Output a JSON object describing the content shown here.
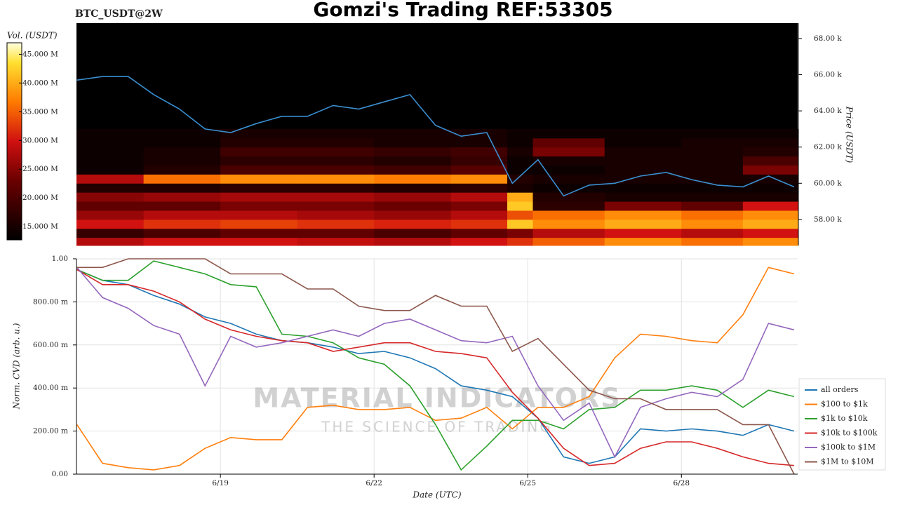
{
  "chart_data": [
    {
      "type": "heatmap",
      "title": "Gomzi's Trading REF:53305",
      "subtitle": "BTC_USDT@2W",
      "zlabel": "Vol. (USDT)",
      "ylabel": "Price (USDT)",
      "xlim": [
        16.19,
        30.27
      ],
      "ylim": [
        56560,
        68850
      ],
      "yticks": [
        {
          "value": 58000,
          "label": "58.00 k"
        },
        {
          "value": 60000,
          "label": "60.00 k"
        },
        {
          "value": 62000,
          "label": "62.00 k"
        },
        {
          "value": 64000,
          "label": "64.00 k"
        },
        {
          "value": 66000,
          "label": "66.00 k"
        },
        {
          "value": 68000,
          "label": "68.00 k"
        }
      ],
      "zlim": [
        12.7,
        47
      ],
      "zticks": [
        {
          "value": 15,
          "label": "15.000 M"
        },
        {
          "value": 20,
          "label": "20.000 M"
        },
        {
          "value": 25,
          "label": "25.000 M"
        },
        {
          "value": 30,
          "label": "30.000 M"
        },
        {
          "value": 35,
          "label": "35.000 M"
        },
        {
          "value": 40,
          "label": "40.000 M"
        },
        {
          "value": 45,
          "label": "45.000 M"
        }
      ],
      "x_bins": [
        16.19,
        17.5,
        19,
        20.5,
        22,
        23.5,
        24.6,
        25.1,
        26.5,
        28,
        29.2,
        30.27
      ],
      "y_bins": [
        56500,
        57000,
        57500,
        58000,
        58500,
        59000,
        59500,
        60000,
        60500,
        61000,
        61500,
        62000,
        62500,
        63000
      ],
      "z": [
        [
          28,
          30,
          30,
          29,
          28,
          30,
          32,
          35,
          38,
          36,
          38
        ],
        [
          18,
          20,
          22,
          22,
          20,
          22,
          24,
          28,
          30,
          28,
          30
        ],
        [
          30,
          32,
          33,
          32,
          31,
          32,
          42,
          38,
          40,
          38,
          40
        ],
        [
          26,
          28,
          28,
          27,
          26,
          28,
          34,
          36,
          38,
          36,
          38
        ],
        [
          22,
          22,
          24,
          24,
          23,
          24,
          42,
          17,
          24,
          22,
          30
        ],
        [
          25,
          26,
          27,
          27,
          26,
          28,
          40,
          16,
          15,
          15,
          15
        ],
        [
          16,
          16,
          17,
          17,
          16,
          17,
          15,
          14,
          14,
          14,
          14
        ],
        [
          28,
          36,
          38,
          38,
          37,
          38,
          16,
          15,
          15,
          15,
          15
        ],
        [
          14,
          16,
          20,
          20,
          19,
          21,
          14,
          14,
          15,
          15,
          24
        ],
        [
          14,
          15,
          17,
          17,
          16,
          18,
          14,
          15,
          15,
          15,
          20
        ],
        [
          14,
          15,
          19,
          19,
          18,
          19,
          15,
          24,
          15,
          15,
          16
        ],
        [
          14,
          14,
          16,
          16,
          15,
          15,
          14,
          22,
          14,
          15,
          15
        ],
        [
          14,
          14,
          15,
          15,
          15,
          15,
          14,
          14,
          14,
          14,
          14
        ]
      ],
      "x": [
        16.2,
        16.7,
        17.2,
        17.7,
        18.2,
        18.7,
        19.2,
        19.7,
        20.2,
        20.7,
        21.2,
        21.7,
        22.2,
        22.7,
        23.2,
        23.7,
        24.2,
        24.7,
        25.2,
        25.7,
        26.2,
        26.7,
        27.2,
        27.7,
        28.2,
        28.7,
        29.2,
        29.7,
        30.2
      ],
      "line": {
        "color": "#3a8fd0",
        "values": [
          65700,
          65900,
          65900,
          64900,
          64100,
          63000,
          62800,
          63300,
          63700,
          63700,
          64300,
          64100,
          64500,
          64900,
          63200,
          62600,
          62800,
          60000,
          61300,
          59300,
          59900,
          60000,
          60400,
          60600,
          60200,
          59900,
          59800,
          60400,
          59800
        ]
      }
    },
    {
      "type": "line",
      "xlabel": "Date (UTC)",
      "ylabel": "Norm. CVD (arb. u.)",
      "grid": true,
      "legend": "right",
      "watermark": {
        "title": "MATERIAL INDICATORS",
        "subtitle": "THE SCIENCE OF TRADING"
      },
      "xlim": [
        16.19,
        30.27
      ],
      "ylim": [
        0,
        1
      ],
      "xticks": [
        {
          "value": 19,
          "label": "6/19"
        },
        {
          "value": 22,
          "label": "6/22"
        },
        {
          "value": 25,
          "label": "6/25"
        },
        {
          "value": 28,
          "label": "6/28"
        }
      ],
      "yticks": [
        {
          "value": 0,
          "label": "0.00"
        },
        {
          "value": 0.2,
          "label": "200.00 m"
        },
        {
          "value": 0.4,
          "label": "400.00 m"
        },
        {
          "value": 0.6,
          "label": "600.00 m"
        },
        {
          "value": 0.8,
          "label": "800.00 m"
        },
        {
          "value": 1,
          "label": "1.00"
        }
      ],
      "x": [
        16.2,
        16.7,
        17.2,
        17.7,
        18.2,
        18.7,
        19.2,
        19.7,
        20.2,
        20.7,
        21.2,
        21.7,
        22.2,
        22.7,
        23.2,
        23.7,
        24.2,
        24.7,
        25.2,
        25.7,
        26.2,
        26.7,
        27.2,
        27.7,
        28.2,
        28.7,
        29.2,
        29.7,
        30.2
      ],
      "series": [
        {
          "name": "all orders",
          "color": "#1f77b4",
          "values": [
            0.95,
            0.9,
            0.88,
            0.83,
            0.79,
            0.73,
            0.7,
            0.65,
            0.62,
            0.61,
            0.59,
            0.56,
            0.57,
            0.54,
            0.49,
            0.41,
            0.39,
            0.36,
            0.26,
            0.08,
            0.05,
            0.08,
            0.21,
            0.2,
            0.21,
            0.2,
            0.18,
            0.23,
            0.2
          ]
        },
        {
          "name": "$100 to $1k",
          "color": "#ff7f0e",
          "values": [
            0.23,
            0.05,
            0.03,
            0.02,
            0.04,
            0.12,
            0.17,
            0.16,
            0.16,
            0.31,
            0.32,
            0.3,
            0.3,
            0.31,
            0.25,
            0.26,
            0.31,
            0.21,
            0.31,
            0.31,
            0.36,
            0.54,
            0.65,
            0.64,
            0.62,
            0.61,
            0.74,
            0.96,
            0.93
          ]
        },
        {
          "name": "$1k to $10k",
          "color": "#2ca02c",
          "values": [
            0.95,
            0.9,
            0.9,
            0.99,
            0.96,
            0.93,
            0.88,
            0.87,
            0.65,
            0.64,
            0.61,
            0.54,
            0.51,
            0.41,
            0.23,
            0.02,
            0.13,
            0.25,
            0.25,
            0.21,
            0.3,
            0.31,
            0.39,
            0.39,
            0.41,
            0.39,
            0.31,
            0.39,
            0.36
          ]
        },
        {
          "name": "$10k to $100k",
          "color": "#d62728",
          "values": [
            0.95,
            0.88,
            0.88,
            0.85,
            0.8,
            0.72,
            0.67,
            0.64,
            0.62,
            0.61,
            0.57,
            0.59,
            0.61,
            0.61,
            0.57,
            0.56,
            0.54,
            0.38,
            0.26,
            0.12,
            0.04,
            0.05,
            0.12,
            0.15,
            0.15,
            0.12,
            0.08,
            0.05,
            0.04
          ]
        },
        {
          "name": "$100k to $1M",
          "color": "#9467bd",
          "values": [
            0.96,
            0.82,
            0.77,
            0.69,
            0.65,
            0.41,
            0.64,
            0.59,
            0.61,
            0.64,
            0.67,
            0.64,
            0.7,
            0.72,
            0.67,
            0.62,
            0.61,
            0.64,
            0.41,
            0.25,
            0.33,
            0.08,
            0.31,
            0.35,
            0.38,
            0.36,
            0.44,
            0.7,
            0.67
          ]
        },
        {
          "name": "$1M to $10M",
          "color": "#8c564b",
          "values": [
            0.96,
            0.96,
            1,
            1,
            1,
            1,
            0.93,
            0.93,
            0.93,
            0.86,
            0.86,
            0.78,
            0.76,
            0.76,
            0.83,
            0.78,
            0.78,
            0.57,
            0.63,
            0.51,
            0.39,
            0.35,
            0.35,
            0.3,
            0.3,
            0.3,
            0.23,
            0.23,
            0
          ]
        }
      ]
    }
  ]
}
